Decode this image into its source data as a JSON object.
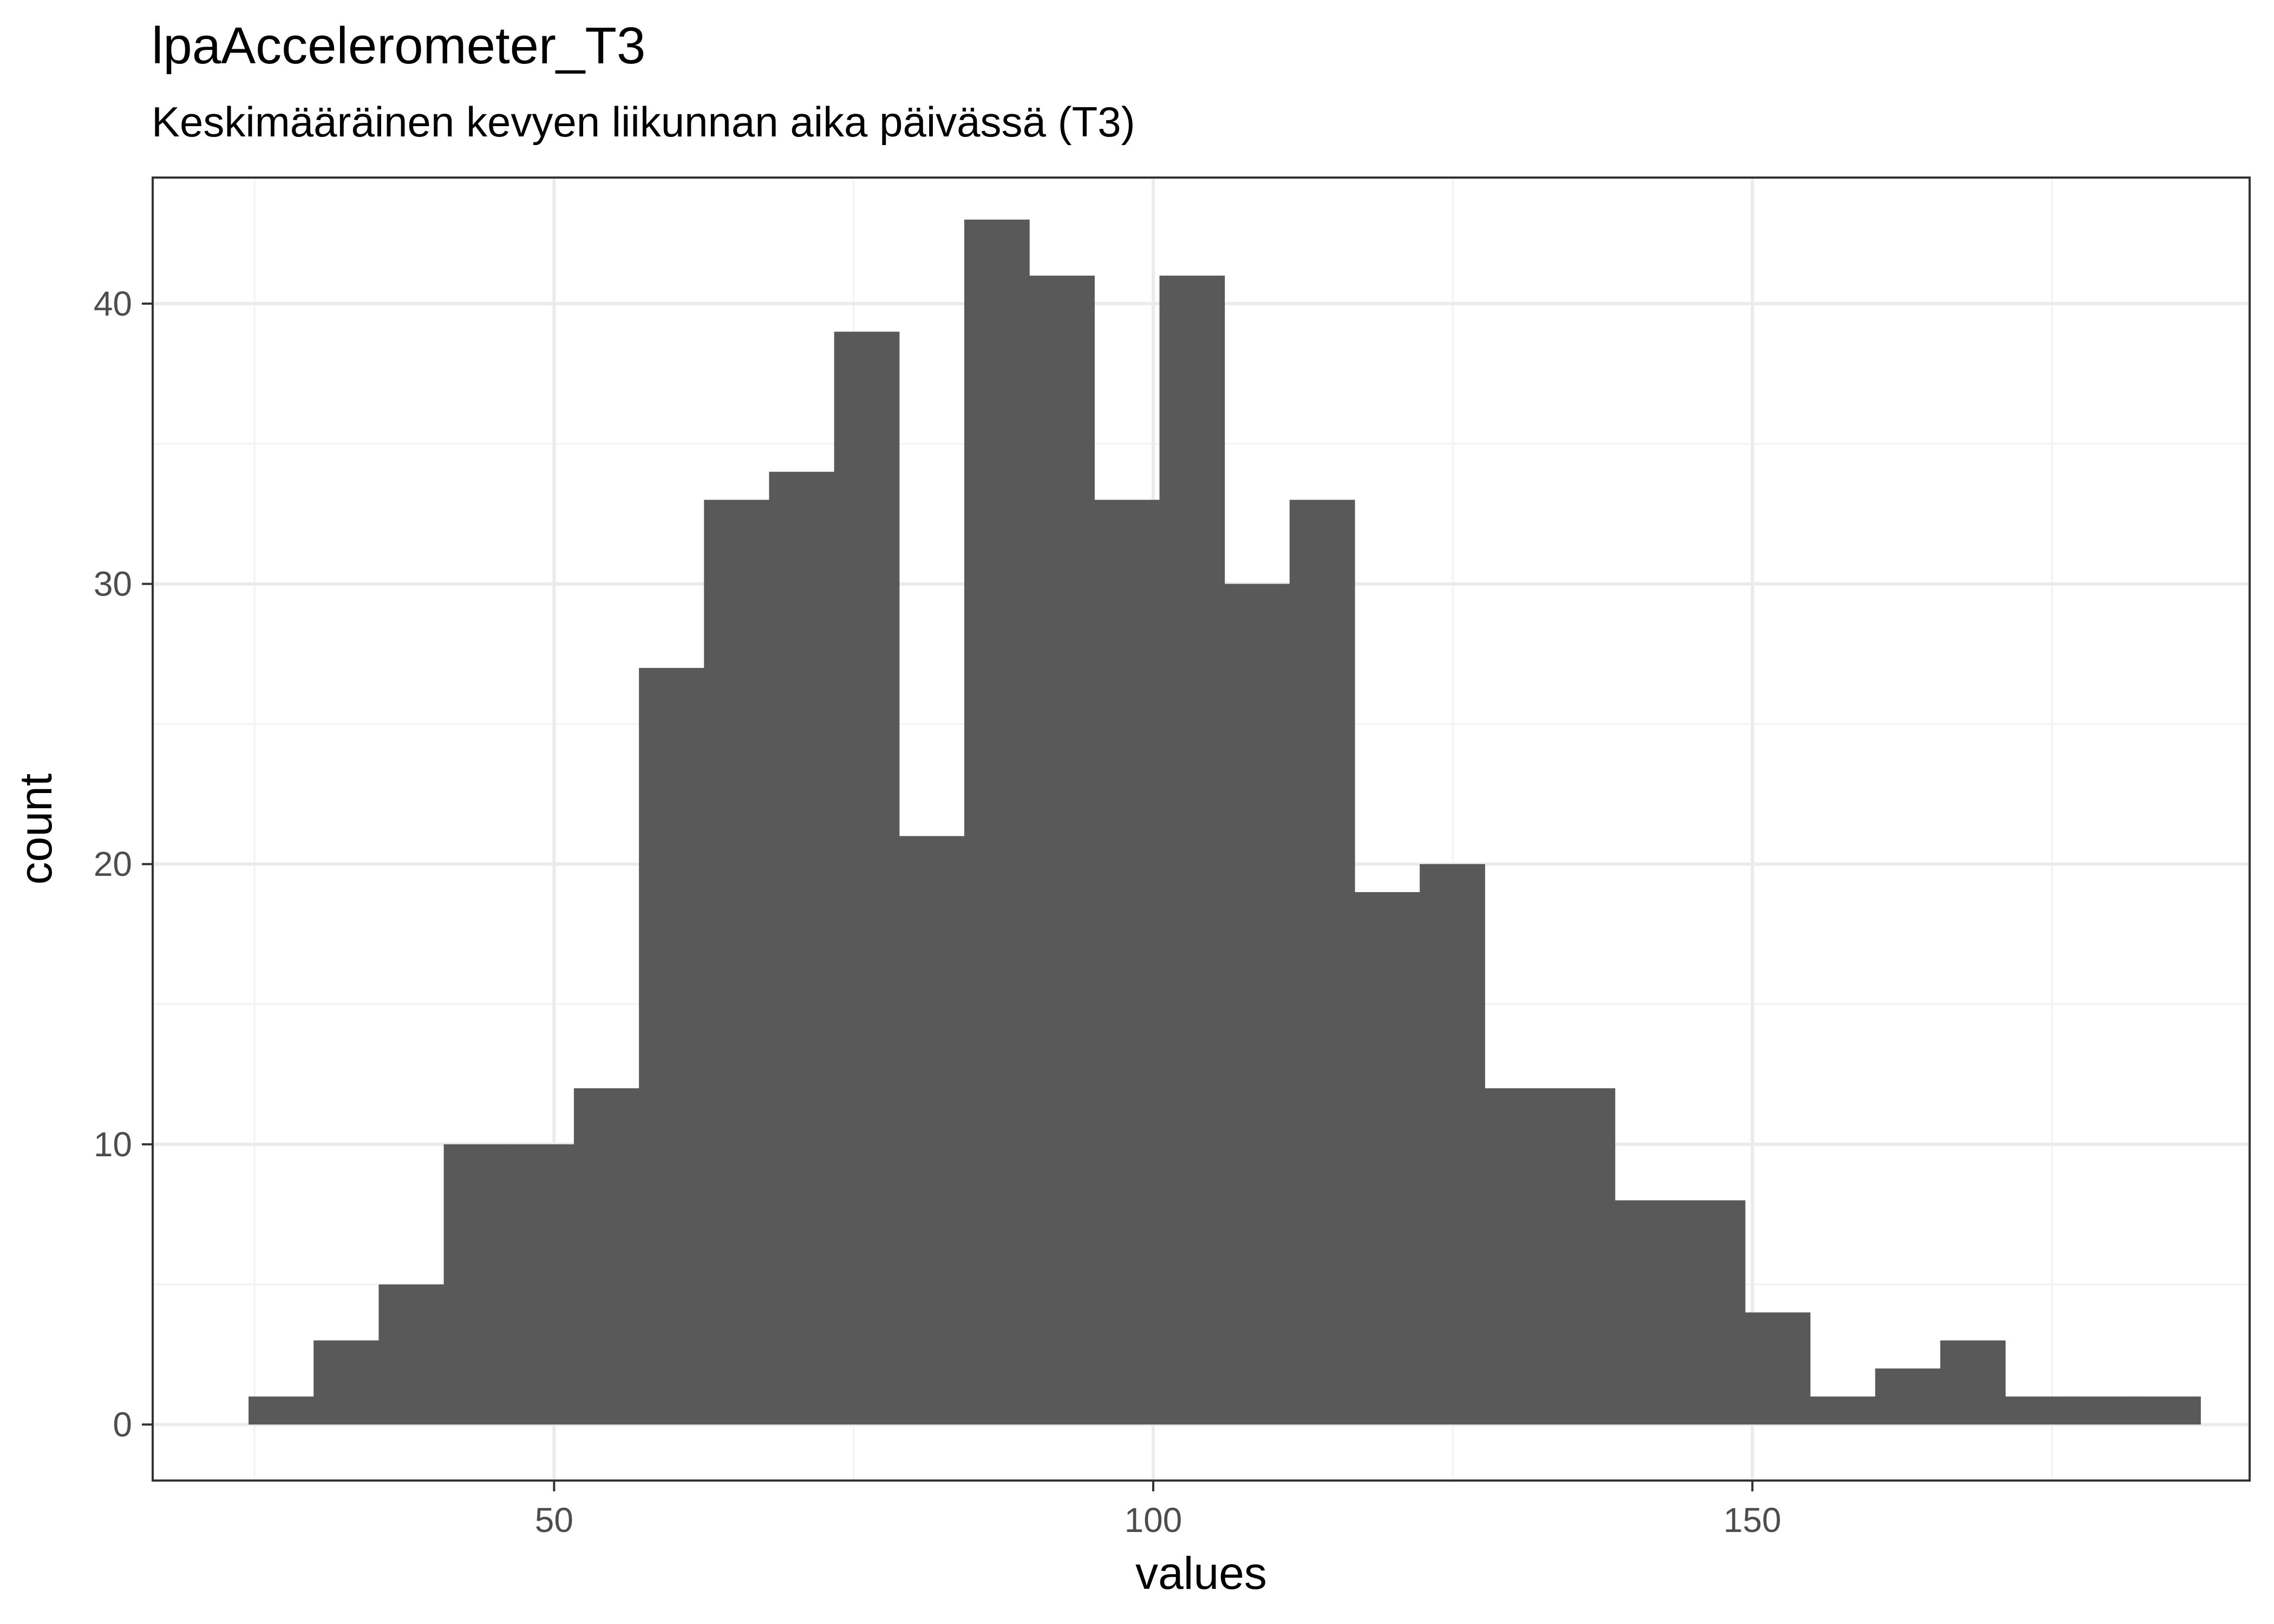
{
  "chart_data": {
    "type": "bar",
    "title": "lpaAccelerometer_T3",
    "subtitle": "Keskimääräinen kevyen liikunnan aika päivässä (T3)",
    "xlabel": "values",
    "ylabel": "count",
    "xlim": [
      16.5,
      191.5
    ],
    "ylim": [
      -2,
      44.5
    ],
    "x_ticks": [
      50,
      100,
      150
    ],
    "y_ticks": [
      0,
      10,
      20,
      30,
      40
    ],
    "grid": true,
    "bin_width": 5.43,
    "bins": [
      {
        "x0": 24.5,
        "count": 1
      },
      {
        "x0": 29.93,
        "count": 3
      },
      {
        "x0": 35.36,
        "count": 5
      },
      {
        "x0": 40.79,
        "count": 10
      },
      {
        "x0": 46.22,
        "count": 10
      },
      {
        "x0": 51.65,
        "count": 12
      },
      {
        "x0": 57.08,
        "count": 27
      },
      {
        "x0": 62.51,
        "count": 33
      },
      {
        "x0": 67.94,
        "count": 34
      },
      {
        "x0": 73.37,
        "count": 39
      },
      {
        "x0": 78.8,
        "count": 21
      },
      {
        "x0": 84.23,
        "count": 43
      },
      {
        "x0": 89.66,
        "count": 41
      },
      {
        "x0": 95.09,
        "count": 33
      },
      {
        "x0": 100.52,
        "count": 41
      },
      {
        "x0": 105.95,
        "count": 30
      },
      {
        "x0": 111.38,
        "count": 33
      },
      {
        "x0": 116.81,
        "count": 19
      },
      {
        "x0": 122.24,
        "count": 20
      },
      {
        "x0": 127.67,
        "count": 12
      },
      {
        "x0": 133.1,
        "count": 12
      },
      {
        "x0": 138.53,
        "count": 8
      },
      {
        "x0": 143.96,
        "count": 8
      },
      {
        "x0": 149.39,
        "count": 4
      },
      {
        "x0": 154.82,
        "count": 1
      },
      {
        "x0": 160.25,
        "count": 2
      },
      {
        "x0": 165.68,
        "count": 3
      },
      {
        "x0": 171.11,
        "count": 1
      },
      {
        "x0": 176.54,
        "count": 1
      },
      {
        "x0": 181.97,
        "count": 1
      }
    ],
    "colors": {
      "bar": "#595959",
      "grid_major": "#ebebeb",
      "grid_minor": "#f2f2f2",
      "panel_border": "#333333",
      "tick_label": "#4d4d4d"
    }
  }
}
